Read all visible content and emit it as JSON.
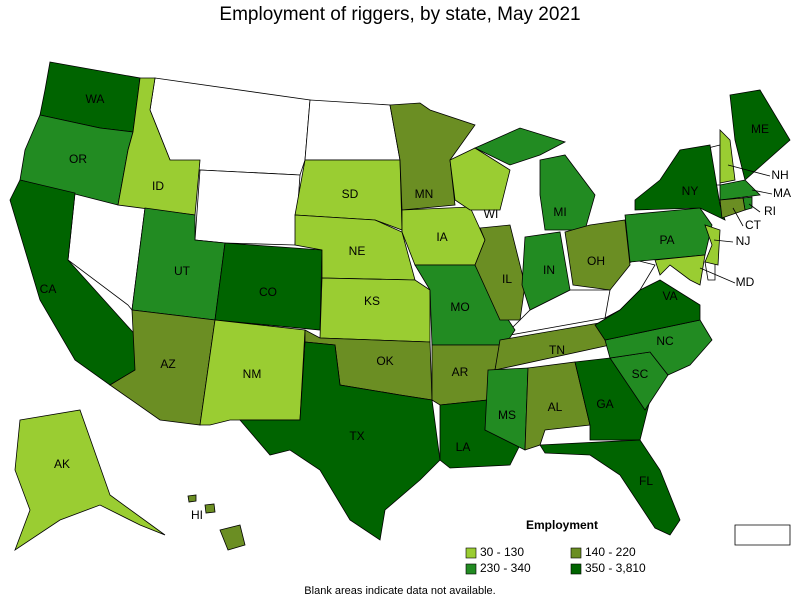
{
  "title": "Employment of riggers, by state, May 2021",
  "legend": {
    "title": "Employment",
    "items": [
      {
        "label": "30 - 130",
        "color": "#9acd32"
      },
      {
        "label": "140 - 220",
        "color": "#6b8e23"
      },
      {
        "label": "230 - 340",
        "color": "#228b22"
      },
      {
        "label": "350 - 3,810",
        "color": "#006400"
      }
    ]
  },
  "states": [
    {
      "label": "WA",
      "category": 3
    },
    {
      "label": "OR",
      "category": 2
    },
    {
      "label": "CA",
      "category": 3
    },
    {
      "label": "ID",
      "category": 0
    },
    {
      "label": "UT",
      "category": 2
    },
    {
      "label": "AZ",
      "category": 1
    },
    {
      "label": "CO",
      "category": 3
    },
    {
      "label": "NM",
      "category": 0
    },
    {
      "label": "SD",
      "category": 0
    },
    {
      "label": "NE",
      "category": 0
    },
    {
      "label": "KS",
      "category": 0
    },
    {
      "label": "OK",
      "category": 1
    },
    {
      "label": "TX",
      "category": 3
    },
    {
      "label": "MN",
      "category": 1
    },
    {
      "label": "IA",
      "category": 0
    },
    {
      "label": "MO",
      "category": 2
    },
    {
      "label": "AR",
      "category": 1
    },
    {
      "label": "LA",
      "category": 3
    },
    {
      "label": "WI",
      "category": 0
    },
    {
      "label": "IL",
      "category": 1
    },
    {
      "label": "MI",
      "category": 2
    },
    {
      "label": "IN",
      "category": 2
    },
    {
      "label": "OH",
      "category": 1
    },
    {
      "label": "TN",
      "category": 1
    },
    {
      "label": "MS",
      "category": 2
    },
    {
      "label": "AL",
      "category": 1
    },
    {
      "label": "GA",
      "category": 3
    },
    {
      "label": "FL",
      "category": 3
    },
    {
      "label": "SC",
      "category": 2
    },
    {
      "label": "NC",
      "category": 2
    },
    {
      "label": "VA",
      "category": 3
    },
    {
      "label": "PA",
      "category": 2
    },
    {
      "label": "NY",
      "category": 3
    },
    {
      "label": "ME",
      "category": 3
    },
    {
      "label": "NH",
      "category": 0
    },
    {
      "label": "MA",
      "category": 2
    },
    {
      "label": "RI",
      "category": 2
    },
    {
      "label": "CT",
      "category": 1
    },
    {
      "label": "NJ",
      "category": 0
    },
    {
      "label": "MD",
      "category": 0
    },
    {
      "label": "AK",
      "category": 0
    },
    {
      "label": "HI",
      "category": 1
    }
  ],
  "footnote": "Blank areas indicate data not available."
}
